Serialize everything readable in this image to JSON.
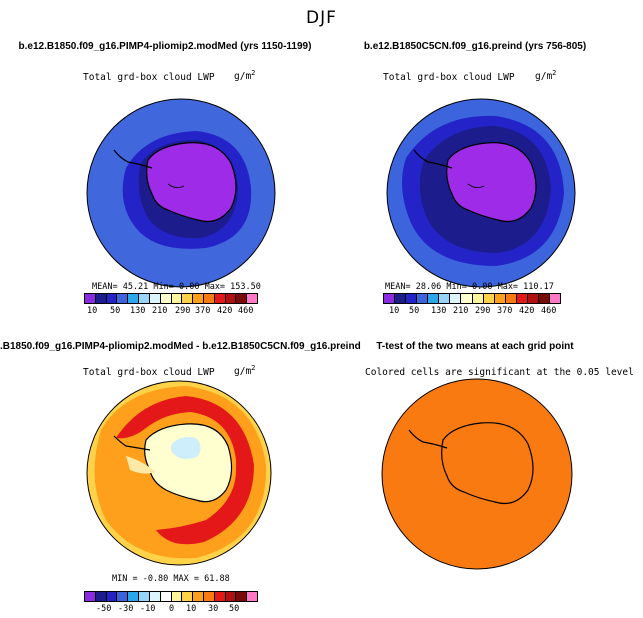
{
  "main_title": "DJF",
  "colors": {
    "lwp": [
      "#8a2be2",
      "#1c1c8c",
      "#2323c8",
      "#3c64dc",
      "#2aa6ea",
      "#96d4fa",
      "#dcf4fc",
      "#ffffd0",
      "#fff59a",
      "#ffd24a",
      "#fea01c",
      "#f97a10",
      "#e41818",
      "#b01010",
      "#7a0a0a",
      "#ff78c8"
    ],
    "diff": [
      "#8a2be2",
      "#1c1c8c",
      "#2323c8",
      "#3c64dc",
      "#2aa6ea",
      "#96d4fa",
      "#dcf4fc",
      "#ffffff",
      "#fff59a",
      "#ffd24a",
      "#fea01c",
      "#f97a10",
      "#e41818",
      "#b01010",
      "#7a0a0a",
      "#ff78c8"
    ],
    "land_mask": "#9d2be8",
    "ttest_fill": "#f97a10"
  },
  "panels": [
    {
      "title": "b.e12.B1850.f09_g16.PIMP4-pliomip2.modMed (yrs 1150-1199)",
      "subtitle": "Total grd-box cloud LWP",
      "units": "g/m",
      "units_exp": "2",
      "stats": "MEAN=  45.21  Min=    0.00  Max= 153.50",
      "colorbar_ticks": [
        "10",
        "50",
        "130",
        "210",
        "290",
        "370",
        "420",
        "460"
      ]
    },
    {
      "title": "b.e12.B1850C5CN.f09_g16.preind (yrs 756-805)",
      "subtitle": "Total grd-box cloud LWP",
      "units": "g/m",
      "units_exp": "2",
      "stats": "MEAN=  28.06  Min=    0.00  Max= 110.17",
      "colorbar_ticks": [
        "10",
        "50",
        "130",
        "210",
        "290",
        "370",
        "420",
        "460"
      ]
    },
    {
      "title": ".B1850.f09_g16.PIMP4-pliomip2.modMed - b.e12.B1850C5CN.f09_g16.preind",
      "subtitle": "Total grd-box cloud LWP",
      "units": "g/m",
      "units_exp": "2",
      "stats": "MIN =  -0.80  MAX =  61.88",
      "colorbar_ticks": [
        "-50",
        "-30",
        "-10",
        "0",
        "10",
        "30",
        "50"
      ]
    },
    {
      "title": "T-test of the two means at each grid point",
      "subtitle": "Colored cells are significant at the 0.05 level"
    }
  ],
  "chart_data": [
    {
      "type": "heatmap",
      "projection": "south-polar-stereographic",
      "title": "b.e12.B1850.f09_g16.PIMP4-pliomip2.modMed (yrs 1150-1199)",
      "variable": "Total grd-box cloud LWP",
      "units": "g/m2",
      "mean": 45.21,
      "min": 0.0,
      "max": 153.5,
      "contour_levels": [
        10,
        50,
        130,
        210,
        290,
        370,
        420,
        460
      ]
    },
    {
      "type": "heatmap",
      "projection": "south-polar-stereographic",
      "title": "b.e12.B1850C5CN.f09_g16.preind (yrs 756-805)",
      "variable": "Total grd-box cloud LWP",
      "units": "g/m2",
      "mean": 28.06,
      "min": 0.0,
      "max": 110.17,
      "contour_levels": [
        10,
        50,
        130,
        210,
        290,
        370,
        420,
        460
      ]
    },
    {
      "type": "heatmap",
      "projection": "south-polar-stereographic",
      "title": ".B1850.f09_g16.PIMP4-pliomip2.modMed - b.e12.B1850C5CN.f09_g16.preind",
      "variable": "Total grd-box cloud LWP",
      "units": "g/m2",
      "min": -0.8,
      "max": 61.88,
      "contour_levels": [
        -50,
        -30,
        -10,
        0,
        10,
        30,
        50
      ]
    },
    {
      "type": "heatmap",
      "projection": "south-polar-stereographic",
      "title": "T-test of the two means at each grid point",
      "note": "Colored cells are significant at the 0.05 level",
      "significant_fraction": 1.0
    }
  ]
}
